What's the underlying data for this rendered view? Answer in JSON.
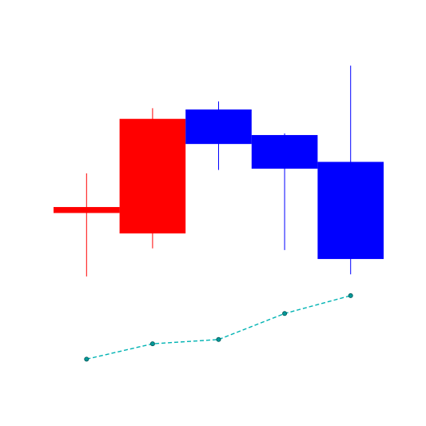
{
  "chart_data": {
    "type": "candlestick",
    "title": "",
    "xlabel": "",
    "ylabel": "",
    "grid": false,
    "legend": "none",
    "x": [
      1,
      2,
      3,
      4,
      5
    ],
    "ylim": [
      0,
      100
    ],
    "candles": [
      {
        "open": 50.0,
        "close": 51.4,
        "high": 59.3,
        "low": 35.1
      },
      {
        "open": 45.2,
        "close": 72.1,
        "high": 74.6,
        "low": 41.7
      },
      {
        "open": 74.3,
        "close": 66.2,
        "high": 76.2,
        "low": 60.1
      },
      {
        "open": 68.3,
        "close": 60.4,
        "high": 68.7,
        "low": 41.3
      },
      {
        "open": 62.0,
        "close": 39.2,
        "high": 84.6,
        "low": 35.6
      }
    ],
    "line": {
      "values": [
        15.7,
        19.3,
        20.3,
        26.4,
        30.6
      ]
    },
    "colors": {
      "up": "#ff0000",
      "down": "#0000ff",
      "line": "#00b3b3",
      "marker_fill": "#009999",
      "marker_edge": "#005555"
    }
  }
}
